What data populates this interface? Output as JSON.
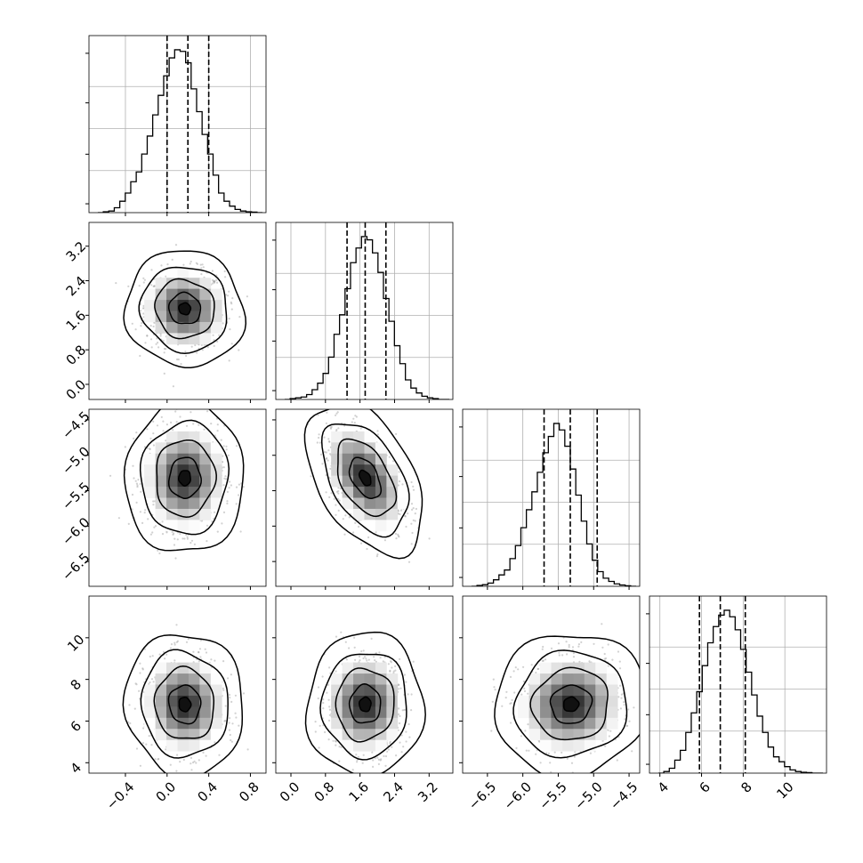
{
  "chart_data": {
    "type": "corner",
    "title": "",
    "grid": true,
    "parameters": [
      {
        "label": "",
        "range": [
          -0.75,
          0.95
        ],
        "ticks": [
          -0.4,
          0.0,
          0.4,
          0.8
        ],
        "tick_labels": [
          "−0.4",
          "0.0",
          "0.4",
          "0.8"
        ],
        "quantiles": [
          0.0,
          0.2,
          0.4
        ],
        "histogram": [
          0,
          0.005,
          0.01,
          0.03,
          0.07,
          0.12,
          0.19,
          0.25,
          0.36,
          0.47,
          0.6,
          0.72,
          0.84,
          0.95,
          1.0,
          0.99,
          0.92,
          0.76,
          0.62,
          0.48,
          0.36,
          0.23,
          0.12,
          0.07,
          0.04,
          0.02,
          0.01,
          0.005,
          0.003,
          0
        ]
      },
      {
        "label": "",
        "range": [
          -0.35,
          3.75
        ],
        "ticks": [
          0.0,
          0.8,
          1.6,
          2.4,
          3.2
        ],
        "tick_labels": [
          "0.0",
          "0.8",
          "1.6",
          "2.4",
          "3.2"
        ],
        "quantiles": [
          1.3,
          1.72,
          2.2
        ],
        "histogram": [
          0,
          0.005,
          0.01,
          0.015,
          0.03,
          0.06,
          0.1,
          0.16,
          0.26,
          0.4,
          0.52,
          0.68,
          0.84,
          0.93,
          1.0,
          0.98,
          0.9,
          0.78,
          0.62,
          0.48,
          0.33,
          0.22,
          0.12,
          0.07,
          0.04,
          0.02,
          0.01,
          0.005,
          0,
          0
        ]
      },
      {
        "label": "",
        "range": [
          -6.85,
          -4.35
        ],
        "ticks": [
          -6.5,
          -6.0,
          -5.5,
          -5.0,
          -4.5
        ],
        "tick_labels": [
          "−6.5",
          "−6.0",
          "−5.5",
          "−5.0",
          "−4.5"
        ],
        "quantiles": [
          -5.7,
          -5.33,
          -4.95
        ],
        "histogram": [
          0,
          0.005,
          0.01,
          0.02,
          0.04,
          0.07,
          0.1,
          0.17,
          0.25,
          0.36,
          0.47,
          0.58,
          0.7,
          0.82,
          0.92,
          1.0,
          0.96,
          0.86,
          0.72,
          0.56,
          0.4,
          0.26,
          0.16,
          0.09,
          0.05,
          0.03,
          0.015,
          0.008,
          0.003,
          0
        ]
      },
      {
        "label": "",
        "range": [
          3.5,
          12.0
        ],
        "ticks": [
          4,
          6,
          8,
          10
        ],
        "tick_labels": [
          "4",
          "6",
          "8",
          "10"
        ],
        "quantiles": [
          5.9,
          6.9,
          8.1
        ],
        "histogram": [
          0,
          0.01,
          0.03,
          0.08,
          0.14,
          0.25,
          0.37,
          0.5,
          0.66,
          0.8,
          0.9,
          0.97,
          1.0,
          0.96,
          0.88,
          0.76,
          0.62,
          0.48,
          0.35,
          0.25,
          0.16,
          0.1,
          0.07,
          0.04,
          0.02,
          0.01,
          0.005,
          0.003,
          0,
          0
        ]
      }
    ],
    "pairs": [
      {
        "x": 0,
        "y": 1,
        "center": [
          0.17,
          1.75
        ],
        "sigma": [
          0.19,
          0.45
        ],
        "rho": -0.05
      },
      {
        "x": 0,
        "y": 2,
        "center": [
          0.17,
          -5.32
        ],
        "sigma": [
          0.19,
          0.36
        ],
        "rho": 0.02
      },
      {
        "x": 1,
        "y": 2,
        "center": [
          1.72,
          -5.32
        ],
        "sigma": [
          0.45,
          0.36
        ],
        "rho": -0.45
      },
      {
        "x": 0,
        "y": 3,
        "center": [
          0.17,
          6.8
        ],
        "sigma": [
          0.19,
          1.15
        ],
        "rho": -0.05
      },
      {
        "x": 1,
        "y": 3,
        "center": [
          1.72,
          6.8
        ],
        "sigma": [
          0.45,
          1.15
        ],
        "rho": 0.02
      },
      {
        "x": 2,
        "y": 3,
        "center": [
          -5.32,
          6.8
        ],
        "sigma": [
          0.36,
          1.15
        ],
        "rho": 0.05
      }
    ]
  }
}
